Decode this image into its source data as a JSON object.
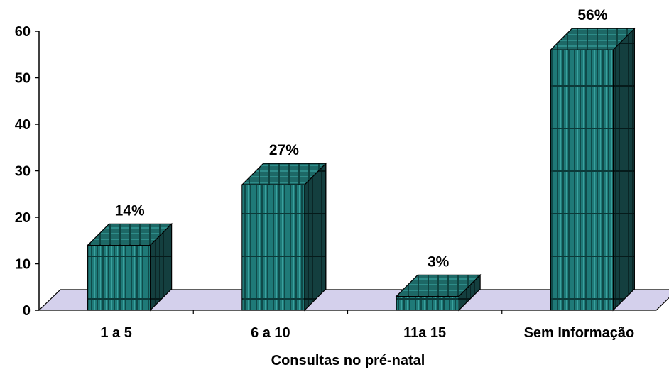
{
  "chart_data": {
    "type": "bar",
    "style": "3d-column",
    "categories": [
      "1 a 5",
      "6 a 10",
      "11a 15",
      "Sem Informação"
    ],
    "values": [
      14,
      27,
      3,
      56
    ],
    "data_labels": [
      "14%",
      "27%",
      "3%",
      "56%"
    ],
    "title": "",
    "xlabel": "Consultas no  pré-natal",
    "ylabel": "",
    "ylim": [
      0,
      60
    ],
    "yticks": [
      "0",
      "10",
      "20",
      "30",
      "40",
      "50",
      "60"
    ],
    "grid": false,
    "legend": "none"
  },
  "colors": {
    "bar_front": "#1f7a78",
    "bar_top": "#1b5f5d",
    "bar_side": "#0f3a3a",
    "floor": "#d4d0ec",
    "axis": "#000000"
  }
}
